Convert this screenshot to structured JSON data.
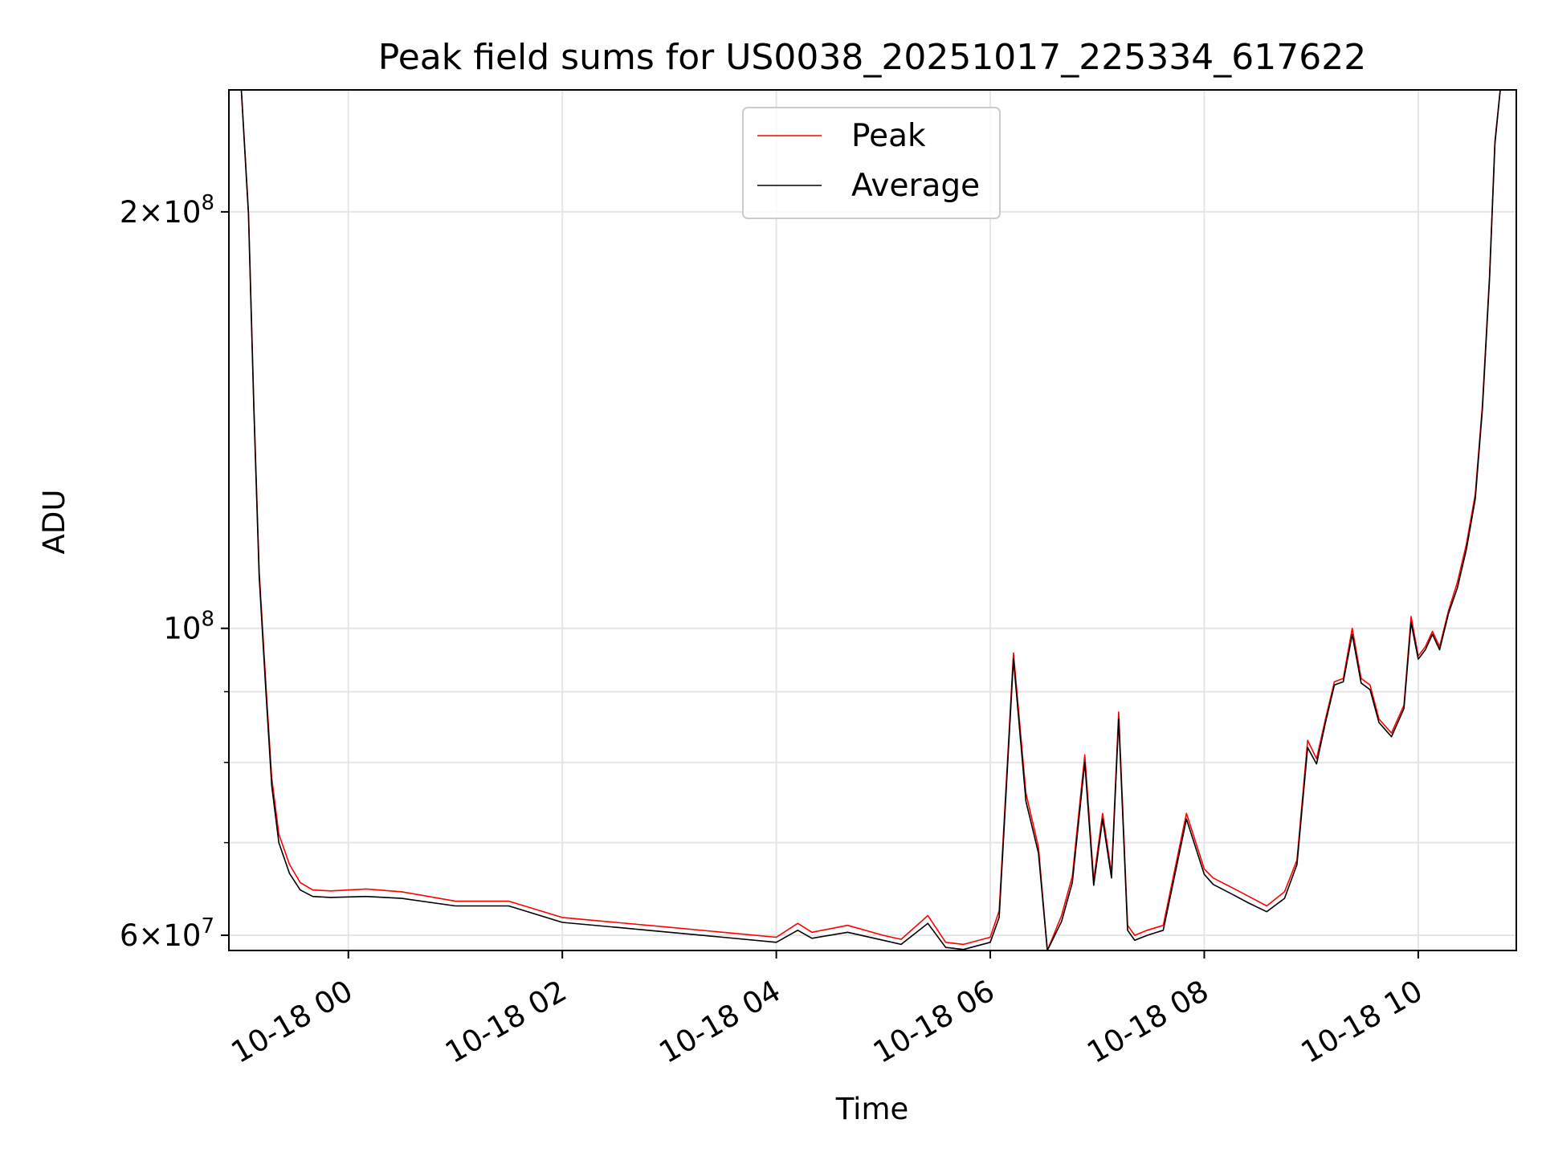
{
  "chart_data": {
    "type": "line",
    "title": "Peak field sums for US0038_20251017_225334_617622",
    "xlabel": "Time",
    "ylabel": "ADU",
    "yscale": "log",
    "xlim": [
      "2025-10-17 22:53",
      "2025-10-18 10:55"
    ],
    "ylim": [
      58500000,
      245000000
    ],
    "grid": true,
    "legend_position": "top-center",
    "x_ticks": [
      "10-18 00",
      "10-18 02",
      "10-18 04",
      "10-18 06",
      "10-18 08",
      "10-18 10"
    ],
    "y_ticks": [
      {
        "value": 60000000,
        "base": "6",
        "times": "×10",
        "exp": "7"
      },
      {
        "value": 100000000,
        "base": "",
        "times": "10",
        "exp": "8"
      },
      {
        "value": 200000000,
        "base": "2",
        "times": "×10",
        "exp": "8"
      }
    ],
    "y_minor_ticks": [
      70000000,
      80000000,
      90000000
    ],
    "x": [
      "2025-10-17 23:00",
      "2025-10-17 23:04",
      "2025-10-17 23:07",
      "2025-10-17 23:10",
      "2025-10-17 23:14",
      "2025-10-17 23:17",
      "2025-10-17 23:21",
      "2025-10-17 23:27",
      "2025-10-17 23:33",
      "2025-10-17 23:40",
      "2025-10-17 23:50",
      "2025-10-18 00:10",
      "2025-10-18 00:30",
      "2025-10-18 01:00",
      "2025-10-18 01:30",
      "2025-10-18 02:00",
      "2025-10-18 02:30",
      "2025-10-18 03:00",
      "2025-10-18 03:30",
      "2025-10-18 04:00",
      "2025-10-18 04:12",
      "2025-10-18 04:20",
      "2025-10-18 04:40",
      "2025-10-18 05:00",
      "2025-10-18 05:10",
      "2025-10-18 05:25",
      "2025-10-18 05:35",
      "2025-10-18 05:45",
      "2025-10-18 06:00",
      "2025-10-18 06:05",
      "2025-10-18 06:13",
      "2025-10-18 06:20",
      "2025-10-18 06:27",
      "2025-10-18 06:32",
      "2025-10-18 06:40",
      "2025-10-18 06:46",
      "2025-10-18 06:53",
      "2025-10-18 06:58",
      "2025-10-18 07:03",
      "2025-10-18 07:08",
      "2025-10-18 07:12",
      "2025-10-18 07:17",
      "2025-10-18 07:21",
      "2025-10-18 07:28",
      "2025-10-18 07:37",
      "2025-10-18 07:50",
      "2025-10-18 08:00",
      "2025-10-18 08:05",
      "2025-10-18 08:15",
      "2025-10-18 08:25",
      "2025-10-18 08:35",
      "2025-10-18 08:45",
      "2025-10-18 08:52",
      "2025-10-18 08:58",
      "2025-10-18 09:03",
      "2025-10-18 09:08",
      "2025-10-18 09:13",
      "2025-10-18 09:18",
      "2025-10-18 09:23",
      "2025-10-18 09:28",
      "2025-10-18 09:33",
      "2025-10-18 09:38",
      "2025-10-18 09:45",
      "2025-10-18 09:52",
      "2025-10-18 09:56",
      "2025-10-18 10:00",
      "2025-10-18 10:04",
      "2025-10-18 10:08",
      "2025-10-18 10:12",
      "2025-10-18 10:17",
      "2025-10-18 10:22",
      "2025-10-18 10:27",
      "2025-10-18 10:32",
      "2025-10-18 10:36",
      "2025-10-18 10:40",
      "2025-10-18 10:43",
      "2025-10-18 10:46"
    ],
    "series": [
      {
        "name": "Peak",
        "color": "#ff0000",
        "values": [
          245000000,
          200000000,
          145000000,
          110000000,
          90000000,
          78000000,
          71000000,
          67500000,
          65500000,
          64700000,
          64600000,
          64800000,
          64500000,
          63500000,
          63500000,
          61800000,
          61300000,
          60800000,
          60300000,
          59800000,
          61200000,
          60300000,
          61000000,
          60000000,
          59600000,
          62000000,
          59300000,
          59100000,
          59800000,
          62500000,
          96000000,
          76000000,
          69500000,
          58500000,
          62000000,
          66200000,
          81000000,
          65800000,
          73500000,
          66500000,
          87000000,
          61000000,
          60000000,
          60500000,
          61000000,
          73500000,
          67000000,
          66000000,
          65000000,
          64000000,
          63000000,
          64500000,
          68000000,
          83000000,
          80500000,
          86000000,
          91500000,
          92000000,
          100000000,
          92000000,
          91000000,
          86000000,
          84000000,
          88000000,
          102000000,
          95500000,
          97000000,
          99500000,
          97000000,
          103000000,
          108000000,
          115000000,
          125000000,
          145000000,
          180000000,
          225000000,
          245000000
        ]
      },
      {
        "name": "Average",
        "color": "#000000",
        "values": [
          245000000,
          199000000,
          144000000,
          109000000,
          89000000,
          77000000,
          70000000,
          66500000,
          64700000,
          64000000,
          63900000,
          64000000,
          63800000,
          63000000,
          63000000,
          61300000,
          60800000,
          60300000,
          59800000,
          59300000,
          60500000,
          59700000,
          60300000,
          59500000,
          59100000,
          61200000,
          58800000,
          58600000,
          59300000,
          61800000,
          95000000,
          75000000,
          68800000,
          58500000,
          61400000,
          65500000,
          80000000,
          65200000,
          72800000,
          66000000,
          86000000,
          60500000,
          59500000,
          60000000,
          60500000,
          72800000,
          66400000,
          65300000,
          64300000,
          63300000,
          62400000,
          63800000,
          67500000,
          82000000,
          79800000,
          85500000,
          91000000,
          91500000,
          99000000,
          91300000,
          90300000,
          85500000,
          83500000,
          87500000,
          101000000,
          95000000,
          96500000,
          99000000,
          96500000,
          102500000,
          107000000,
          114000000,
          124000000,
          144000000,
          179000000,
          224000000,
          245000000
        ]
      }
    ]
  }
}
